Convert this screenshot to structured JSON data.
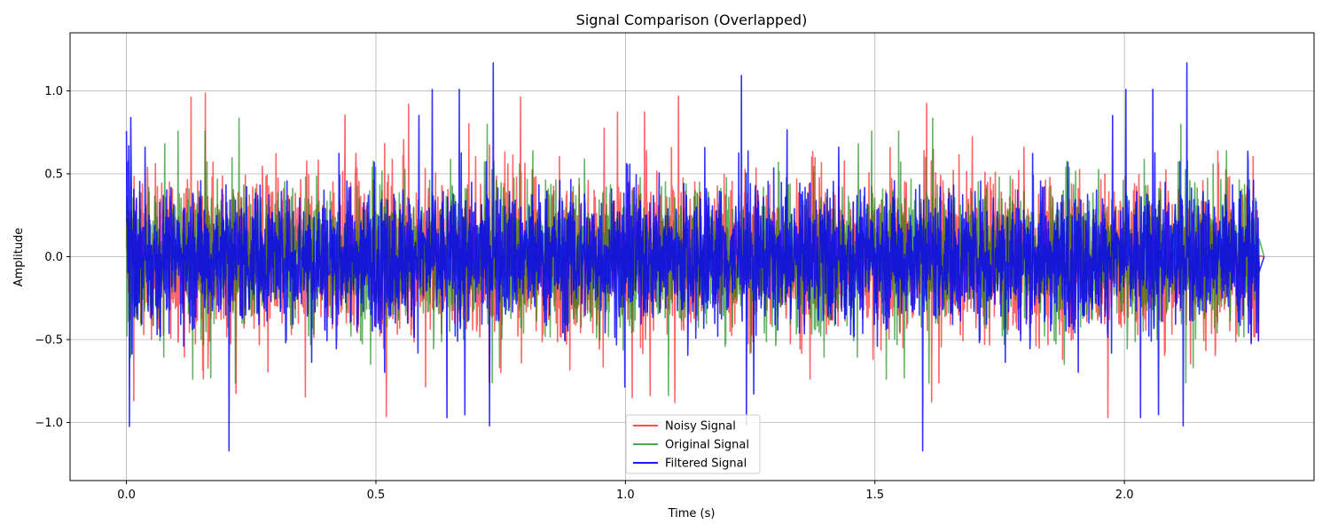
{
  "chart_data": {
    "type": "line",
    "title": "Signal Comparison (Overlapped)",
    "xlabel": "Time (s)",
    "ylabel": "Amplitude",
    "xlim": [
      -0.113,
      2.38
    ],
    "ylim": [
      -1.35,
      1.35
    ],
    "x_ticks": [
      0.0,
      0.5,
      1.0,
      1.5,
      2.0
    ],
    "x_tick_labels": [
      "0.0",
      "0.5",
      "1.0",
      "1.5",
      "2.0"
    ],
    "y_ticks": [
      -1.0,
      -0.5,
      0.0,
      0.5,
      1.0
    ],
    "y_tick_labels": [
      "−1.0",
      "−0.5",
      "0.0",
      "0.5",
      "1.0"
    ],
    "grid": true,
    "legend_position": "bottom-center",
    "duration_s": 2.27,
    "series": [
      {
        "name": "Noisy Signal",
        "color": "#ff0000",
        "opacity": 0.6,
        "typical_amplitude": 0.55,
        "peak_amplitude": 1.0
      },
      {
        "name": "Original Signal",
        "color": "#008000",
        "opacity": 0.6,
        "typical_amplitude": 0.5,
        "peak_amplitude": 0.86
      },
      {
        "name": "Filtered Signal",
        "color": "#0000ff",
        "opacity": 0.8,
        "typical_amplitude": 0.48,
        "peak_amplitude": 1.22
      }
    ],
    "legend": [
      "Noisy Signal",
      "Original Signal",
      "Filtered Signal"
    ]
  }
}
